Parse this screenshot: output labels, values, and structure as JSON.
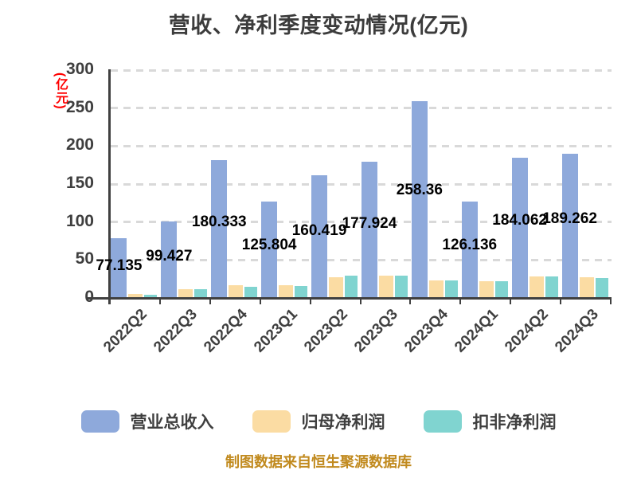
{
  "title": "营收、净利季度变动情况(亿元)",
  "y_axis": {
    "unit_label": "(亿元)",
    "unit_color": "#ff0000",
    "min": 0,
    "max": 300,
    "interval": 50,
    "tick_labels": [
      "0",
      "50",
      "100",
      "150",
      "200",
      "250",
      "300"
    ]
  },
  "chart_data": {
    "type": "bar",
    "title": "营收、净利季度变动情况(亿元)",
    "categories": [
      "2022Q2",
      "2022Q3",
      "2022Q4",
      "2023Q1",
      "2023Q2",
      "2023Q3",
      "2023Q4",
      "2024Q1",
      "2024Q2",
      "2024Q3"
    ],
    "series": [
      {
        "name": "营业总收入",
        "color": "#8ea9db",
        "values": [
          77.135,
          99.427,
          180.333,
          125.804,
          160.419,
          177.924,
          258.36,
          126.136,
          184.062,
          189.262
        ],
        "value_labels_shown": true
      },
      {
        "name": "归母净利润",
        "color": "#fbdca3",
        "values": [
          4.3,
          10.3,
          15.7,
          15.3,
          26.4,
          28.6,
          22.5,
          21.4,
          27.5,
          25.7
        ],
        "value_labels_shown": false
      },
      {
        "name": "扣非净利润",
        "color": "#80d4d0",
        "values": [
          3.0,
          10.0,
          13.6,
          14.4,
          27.8,
          28.3,
          22.2,
          21.4,
          27.5,
          25.0
        ],
        "value_labels_shown": false
      }
    ],
    "ylim": [
      0,
      300
    ],
    "grid": true,
    "gridline_style": "dashed",
    "legend_position": "bottom",
    "xlabel": "",
    "ylabel": "(亿元)"
  },
  "footer": {
    "source_note": "制图数据来自恒生聚源数据库",
    "color": "#c18a1e"
  }
}
